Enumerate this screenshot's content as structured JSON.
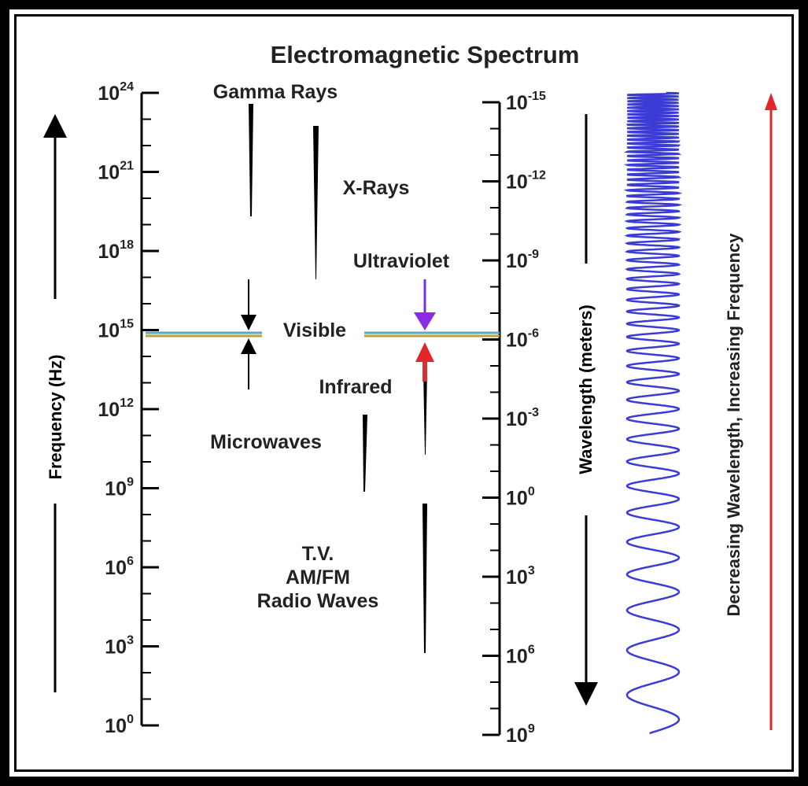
{
  "title": "Electromagnetic Spectrum",
  "frequency_axis": {
    "label": "Frequency (Hz)",
    "ticks": [
      {
        "base": "10",
        "exp": "24",
        "value_exp": 24
      },
      {
        "base": "10",
        "exp": "21",
        "value_exp": 21
      },
      {
        "base": "10",
        "exp": "18",
        "value_exp": 18
      },
      {
        "base": "10",
        "exp": "15",
        "value_exp": 15
      },
      {
        "base": "10",
        "exp": "12",
        "value_exp": 12
      },
      {
        "base": "10",
        "exp": "9",
        "value_exp": 9
      },
      {
        "base": "10",
        "exp": "6",
        "value_exp": 6
      },
      {
        "base": "10",
        "exp": "3",
        "value_exp": 3
      },
      {
        "base": "10",
        "exp": "0",
        "value_exp": 0
      }
    ]
  },
  "wavelength_axis": {
    "label": "Wavelength (meters)",
    "ticks": [
      {
        "base": "10",
        "exp": "-15",
        "value_exp": -15
      },
      {
        "base": "10",
        "exp": "-12",
        "value_exp": -12
      },
      {
        "base": "10",
        "exp": "-9",
        "value_exp": -9
      },
      {
        "base": "10",
        "exp": "-6",
        "value_exp": -6
      },
      {
        "base": "10",
        "exp": "-3",
        "value_exp": -3
      },
      {
        "base": "10",
        "exp": "0",
        "value_exp": 0
      },
      {
        "base": "10",
        "exp": "3",
        "value_exp": 3
      },
      {
        "base": "10",
        "exp": "6",
        "value_exp": 6
      },
      {
        "base": "10",
        "exp": "9",
        "value_exp": 9
      }
    ]
  },
  "bands": {
    "gamma": "Gamma Rays",
    "xray": "X-Rays",
    "uv": "Ultraviolet",
    "visible": "Visible",
    "infrared": "Infrared",
    "microwave": "Microwaves",
    "radio_line1": "T.V.",
    "radio_line2": "AM/FM",
    "radio_line3": "Radio Waves"
  },
  "side_label": "Decreasing Wavelength, Increasing Frequency",
  "colors": {
    "wave": "#3b3bd6",
    "arrow_red": "#e0262b",
    "violet": "#8b2be2",
    "visible_line_top": "#5aa7c9",
    "visible_line_bottom": "#b8a53a"
  }
}
